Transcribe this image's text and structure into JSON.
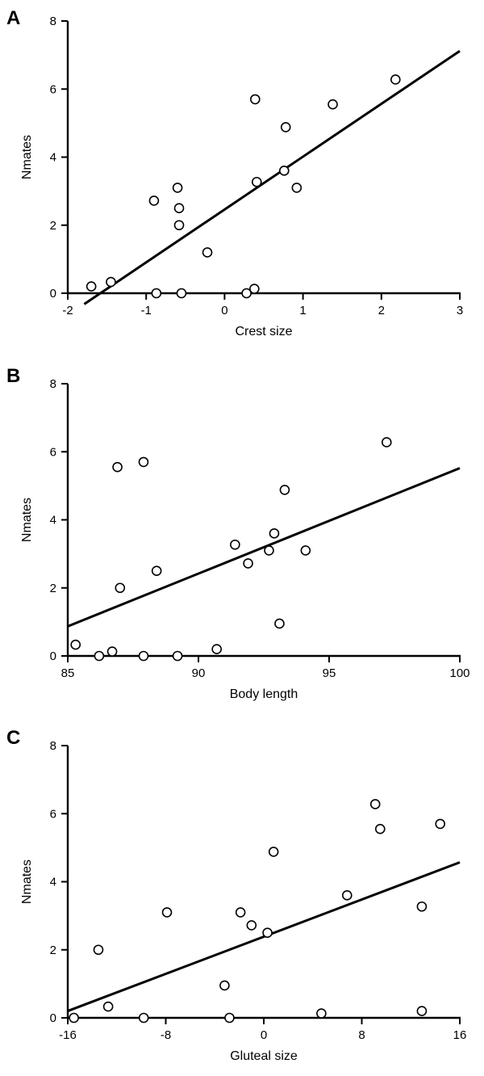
{
  "chart_data": [
    {
      "type": "scatter",
      "panel": "A",
      "xlabel": "Crest size",
      "ylabel": "Nmates",
      "xlim": [
        -2,
        3
      ],
      "ylim": [
        0,
        8
      ],
      "xticks": [
        -2,
        -1,
        0,
        1,
        2,
        3
      ],
      "yticks": [
        0,
        2,
        4,
        6,
        8
      ],
      "points": [
        {
          "x": -1.7,
          "y": 0.2
        },
        {
          "x": -1.45,
          "y": 0.33
        },
        {
          "x": -0.9,
          "y": 2.72
        },
        {
          "x": -0.87,
          "y": 0.0
        },
        {
          "x": -0.6,
          "y": 3.1
        },
        {
          "x": -0.58,
          "y": 2.5
        },
        {
          "x": -0.58,
          "y": 2.0
        },
        {
          "x": -0.55,
          "y": 0.0
        },
        {
          "x": -0.22,
          "y": 1.2
        },
        {
          "x": 0.28,
          "y": 0.0
        },
        {
          "x": 0.38,
          "y": 0.13
        },
        {
          "x": 0.39,
          "y": 5.7
        },
        {
          "x": 0.41,
          "y": 3.27
        },
        {
          "x": 0.76,
          "y": 3.6
        },
        {
          "x": 0.78,
          "y": 4.88
        },
        {
          "x": 0.92,
          "y": 3.1
        },
        {
          "x": 1.38,
          "y": 5.55
        },
        {
          "x": 2.18,
          "y": 6.28
        }
      ],
      "fit": {
        "x": [
          -1.79,
          3.0
        ],
        "y": [
          -0.32,
          7.12
        ]
      }
    },
    {
      "type": "scatter",
      "panel": "B",
      "xlabel": "Body length",
      "ylabel": "Nmates",
      "xlim": [
        85,
        100
      ],
      "ylim": [
        0,
        8
      ],
      "xticks": [
        85,
        90,
        95,
        100
      ],
      "yticks": [
        0,
        2,
        4,
        6,
        8
      ],
      "points": [
        {
          "x": 85.3,
          "y": 0.33
        },
        {
          "x": 86.2,
          "y": 0.0
        },
        {
          "x": 86.7,
          "y": 0.13
        },
        {
          "x": 86.9,
          "y": 5.55
        },
        {
          "x": 87.0,
          "y": 2.0
        },
        {
          "x": 87.9,
          "y": 5.7
        },
        {
          "x": 87.9,
          "y": 0.0
        },
        {
          "x": 88.4,
          "y": 2.5
        },
        {
          "x": 89.2,
          "y": 0.0
        },
        {
          "x": 90.7,
          "y": 0.2
        },
        {
          "x": 91.4,
          "y": 3.27
        },
        {
          "x": 91.9,
          "y": 2.72
        },
        {
          "x": 92.7,
          "y": 3.1
        },
        {
          "x": 92.9,
          "y": 3.6
        },
        {
          "x": 93.1,
          "y": 0.95
        },
        {
          "x": 93.3,
          "y": 4.88
        },
        {
          "x": 94.1,
          "y": 3.1
        },
        {
          "x": 97.2,
          "y": 6.28
        }
      ],
      "fit": {
        "x": [
          85.0,
          100.0
        ],
        "y": [
          0.87,
          5.52
        ]
      }
    },
    {
      "type": "scatter",
      "panel": "C",
      "xlabel": "Gluteal size",
      "ylabel": "Nmates",
      "xlim": [
        -16,
        16
      ],
      "ylim": [
        0,
        8
      ],
      "xticks": [
        -16,
        -8,
        0,
        8,
        16
      ],
      "yticks": [
        0,
        2,
        4,
        6,
        8
      ],
      "points": [
        {
          "x": -15.5,
          "y": 0.0
        },
        {
          "x": -13.5,
          "y": 2.0
        },
        {
          "x": -12.7,
          "y": 0.33
        },
        {
          "x": -9.8,
          "y": 0.0
        },
        {
          "x": -7.9,
          "y": 3.1
        },
        {
          "x": -3.2,
          "y": 0.95
        },
        {
          "x": -2.8,
          "y": 0.0
        },
        {
          "x": -1.9,
          "y": 3.1
        },
        {
          "x": -1.0,
          "y": 2.72
        },
        {
          "x": 0.3,
          "y": 2.5
        },
        {
          "x": 0.8,
          "y": 4.88
        },
        {
          "x": 4.7,
          "y": 0.13
        },
        {
          "x": 6.8,
          "y": 3.6
        },
        {
          "x": 9.1,
          "y": 6.28
        },
        {
          "x": 9.5,
          "y": 5.55
        },
        {
          "x": 12.9,
          "y": 3.27
        },
        {
          "x": 12.9,
          "y": 0.2
        },
        {
          "x": 14.4,
          "y": 5.7
        }
      ],
      "fit": {
        "x": [
          -16.0,
          16.0
        ],
        "y": [
          0.2,
          4.57
        ]
      }
    }
  ]
}
